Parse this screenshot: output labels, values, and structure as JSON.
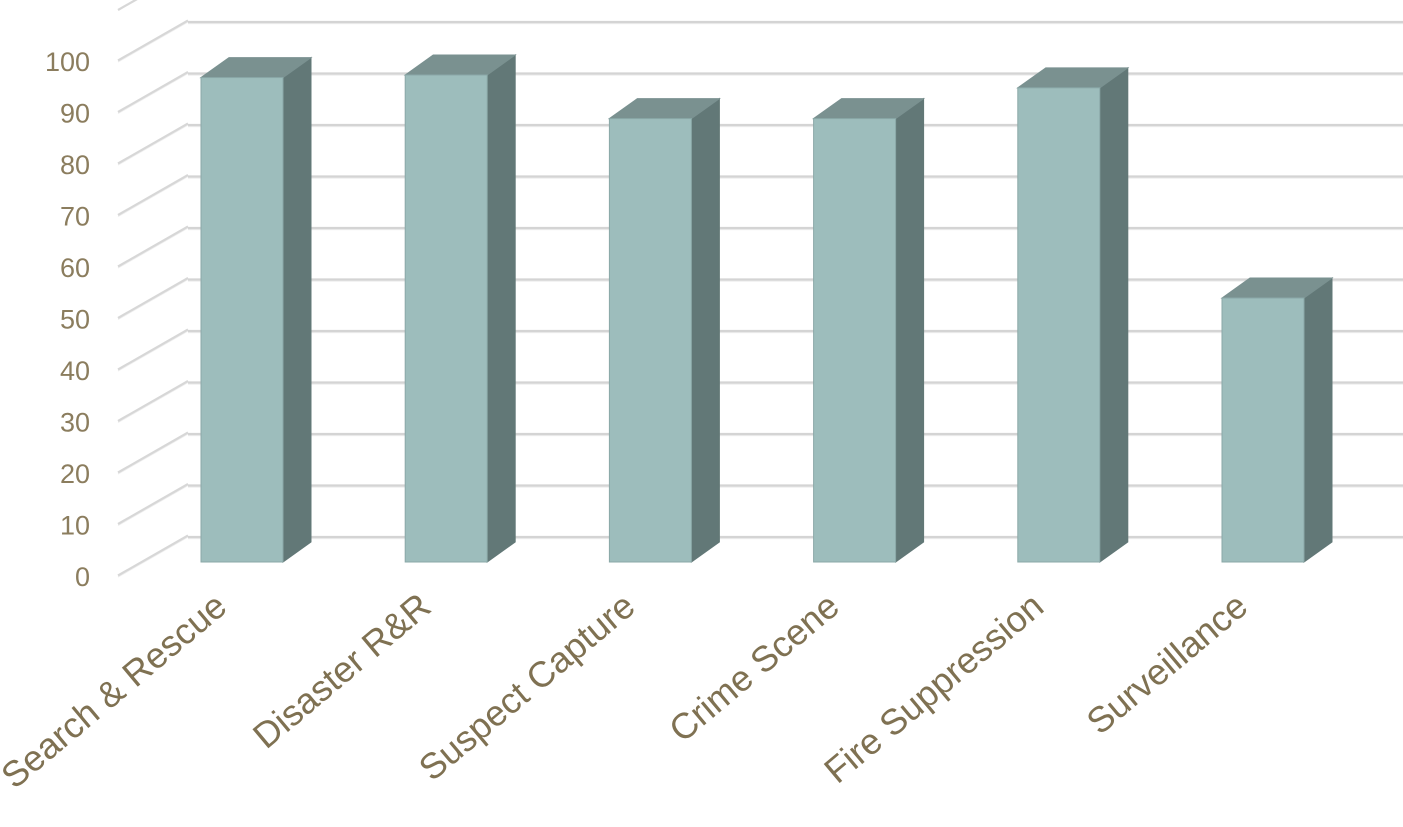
{
  "chart_data": {
    "type": "bar",
    "categories": [
      "Search & Rescue",
      "Disaster R&R",
      "Suspect Capture",
      "Crime Scene",
      "Fire Suppression",
      "Surveillance"
    ],
    "values": [
      94.5,
      95,
      86.5,
      86.5,
      92.5,
      51.5
    ],
    "ylim": [
      0,
      100
    ],
    "yticks": [
      0,
      10,
      20,
      30,
      40,
      50,
      60,
      70,
      80,
      90,
      100
    ],
    "title": "",
    "xlabel": "",
    "ylabel": "",
    "grid": true,
    "legend": "none",
    "three_d": true,
    "colors": {
      "bar_front": "#9dbdbc",
      "bar_side": "#627877",
      "bar_top": "#7a9190",
      "bar_edge": "#8aa8a7",
      "tick_label": "#8b7d5e",
      "category_label": "#7f7152",
      "grid": "#d4d4d4"
    }
  }
}
